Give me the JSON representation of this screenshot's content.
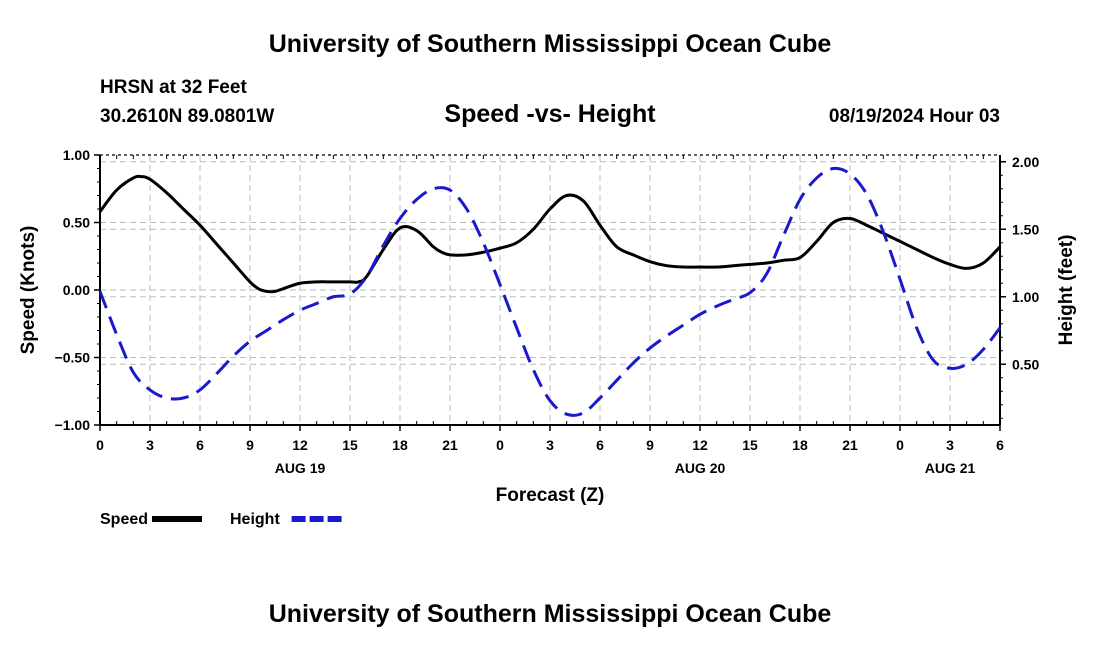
{
  "header": {
    "title": "University of Southern Mississippi Ocean Cube",
    "station": "HRSN at 32 Feet",
    "coordinates": "30.2610N  89.0801W",
    "subtitle": "Speed -vs- Height",
    "datetime": "08/19/2024 Hour 03"
  },
  "footer": {
    "title": "University of Southern Mississippi Ocean Cube"
  },
  "chart_data": {
    "type": "line",
    "title": "Speed -vs- Height",
    "xlabel": "Forecast (Z)",
    "ylabel_left": "Speed (Knots)",
    "ylabel_right": "Height (feet)",
    "x_hours_range": [
      0,
      54
    ],
    "x_tick_labels": [
      "0",
      "3",
      "6",
      "9",
      "12",
      "15",
      "18",
      "21",
      "0",
      "3",
      "6",
      "9",
      "12",
      "15",
      "18",
      "21",
      "0",
      "3",
      "6"
    ],
    "date_labels": [
      {
        "hour": 12,
        "label": "AUG 19"
      },
      {
        "hour": 36,
        "label": "AUG 20"
      },
      {
        "hour": 51,
        "label": "AUG 21"
      }
    ],
    "y_left": {
      "range": [
        -1.0,
        1.0
      ],
      "ticks": [
        -1.0,
        -0.5,
        0.0,
        0.5,
        1.0
      ],
      "tick_labels": [
        "−1.00",
        "−0.50",
        "0.00",
        "0.50",
        "1.00"
      ]
    },
    "y_right": {
      "range": [
        0.05,
        2.05
      ],
      "ticks": [
        0.5,
        1.0,
        1.5,
        2.0
      ],
      "tick_labels": [
        "0.50",
        "1.00",
        "1.50",
        "2.00"
      ]
    },
    "grid": true,
    "series": [
      {
        "name": "Speed",
        "axis": "left",
        "color": "#000000",
        "style": "solid",
        "x": [
          0,
          1,
          2,
          2.5,
          3,
          4,
          5,
          6,
          7,
          8,
          9,
          9.5,
          10,
          10.5,
          11,
          12,
          13,
          14,
          15,
          15.5,
          16,
          17,
          18,
          19,
          20,
          20.5,
          21,
          22,
          23,
          24,
          25,
          26,
          27,
          28,
          29,
          30,
          31,
          32,
          33,
          34,
          35,
          36,
          37,
          38,
          39,
          40,
          41,
          42,
          43,
          44,
          45,
          46,
          47,
          48,
          49,
          50,
          51,
          52,
          53,
          54
        ],
        "values": [
          0.58,
          0.74,
          0.83,
          0.84,
          0.82,
          0.72,
          0.6,
          0.48,
          0.34,
          0.2,
          0.06,
          0.01,
          -0.01,
          -0.01,
          0.01,
          0.05,
          0.06,
          0.06,
          0.06,
          0.06,
          0.1,
          0.3,
          0.46,
          0.44,
          0.32,
          0.28,
          0.26,
          0.26,
          0.28,
          0.31,
          0.35,
          0.45,
          0.6,
          0.7,
          0.66,
          0.48,
          0.32,
          0.26,
          0.21,
          0.18,
          0.17,
          0.17,
          0.17,
          0.18,
          0.19,
          0.2,
          0.22,
          0.24,
          0.36,
          0.5,
          0.53,
          0.48,
          0.42,
          0.36,
          0.3,
          0.24,
          0.19,
          0.16,
          0.2,
          0.32
        ]
      },
      {
        "name": "Height",
        "axis": "right",
        "color": "#1a1acc",
        "style": "dashed",
        "x": [
          0,
          1,
          2,
          3,
          4,
          5,
          6,
          7,
          8,
          9,
          10,
          11,
          12,
          13,
          14,
          15,
          16,
          17,
          18,
          19,
          20,
          21,
          22,
          23,
          24,
          25,
          26,
          27,
          28,
          29,
          30,
          31,
          32,
          33,
          34,
          35,
          36,
          37,
          38,
          39,
          40,
          41,
          42,
          43,
          44,
          45,
          46,
          47,
          48,
          49,
          50,
          51,
          52,
          53,
          54
        ],
        "values": [
          1.04,
          0.72,
          0.44,
          0.31,
          0.25,
          0.25,
          0.31,
          0.43,
          0.56,
          0.67,
          0.75,
          0.83,
          0.9,
          0.95,
          1.0,
          1.02,
          1.15,
          1.38,
          1.58,
          1.72,
          1.8,
          1.79,
          1.65,
          1.4,
          1.09,
          0.77,
          0.46,
          0.23,
          0.13,
          0.14,
          0.25,
          0.38,
          0.51,
          0.62,
          0.71,
          0.79,
          0.87,
          0.93,
          0.98,
          1.03,
          1.17,
          1.45,
          1.72,
          1.88,
          1.95,
          1.91,
          1.76,
          1.48,
          1.13,
          0.77,
          0.53,
          0.47,
          0.5,
          0.61,
          0.77
        ]
      }
    ],
    "legend": [
      {
        "label": "Speed",
        "color": "#000000",
        "style": "solid"
      },
      {
        "label": "Height",
        "color": "#1a1acc",
        "style": "dashed"
      }
    ],
    "legend_position": "bottom-left"
  }
}
